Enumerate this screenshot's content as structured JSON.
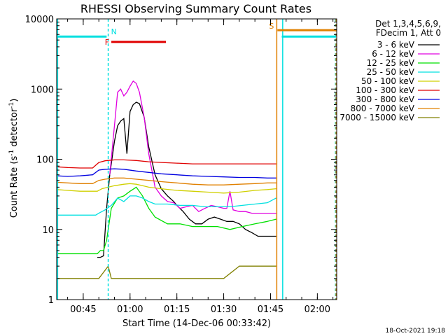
{
  "chart_data": {
    "type": "line",
    "title": "RHESSI Observing Summary Count Rates",
    "xlabel": "Start Time (14-Dec-06 00:33:42)",
    "ylabel_main": "Count Rate (s",
    "ylabel_sup1": "-1",
    "ylabel_mid": " detector",
    "ylabel_sup2": "-1",
    "ylabel_end": ")",
    "x_unit": "minutes since 00:00 UT",
    "xlim": [
      36.5,
      126.2
    ],
    "ylim": [
      1,
      10000
    ],
    "yscale": "log",
    "x_ticks": [
      {
        "value": 45,
        "label": "00:45"
      },
      {
        "value": 60,
        "label": "01:00"
      },
      {
        "value": 75,
        "label": "01:15"
      },
      {
        "value": 90,
        "label": "01:30"
      },
      {
        "value": 105,
        "label": "01:45"
      },
      {
        "value": 120,
        "label": "02:00"
      }
    ],
    "y_ticks": [
      {
        "value": 1,
        "label": "1"
      },
      {
        "value": 10,
        "label": "10"
      },
      {
        "value": 100,
        "label": "100"
      },
      {
        "value": 1000,
        "label": "1000"
      },
      {
        "value": 10000,
        "label": "10000"
      }
    ],
    "legend_header": [
      "Det 1,3,4,5,6,9,",
      "FDecim 1, Att 0"
    ],
    "legend_position": "right",
    "series": [
      {
        "name": "3 - 6 keV",
        "color": "#000000",
        "x": [
          49.5,
          50.5,
          51.5,
          52.5,
          53.5,
          55,
          56,
          57,
          58,
          59,
          60,
          61,
          62,
          63,
          64.5,
          66,
          68,
          70,
          72,
          74,
          75,
          77,
          79,
          81,
          83,
          85,
          87,
          89,
          91,
          93,
          95,
          97,
          99,
          101,
          103,
          105,
          106.8
        ],
        "y": [
          4,
          4,
          4.2,
          20,
          60,
          180,
          300,
          350,
          380,
          120,
          480,
          600,
          650,
          620,
          400,
          150,
          60,
          38,
          30,
          25,
          22,
          18,
          14,
          12,
          12,
          14,
          15,
          14,
          13,
          13,
          12,
          10,
          9,
          8,
          8,
          8,
          8
        ]
      },
      {
        "name": "6 - 12 keV",
        "color": "#e000e0",
        "x": [
          53.5,
          55,
          56,
          57,
          58,
          59,
          60,
          61,
          62,
          63,
          64.5,
          66,
          68,
          70,
          72,
          74,
          76,
          78,
          80,
          82,
          84,
          86,
          88,
          90,
          91,
          92,
          93,
          95,
          97,
          99,
          101,
          103,
          105,
          106.8
        ],
        "y": [
          60,
          300,
          900,
          1000,
          800,
          900,
          1100,
          1300,
          1200,
          900,
          400,
          120,
          40,
          30,
          25,
          24,
          20,
          21,
          22,
          18,
          20,
          22,
          21,
          20,
          20,
          35,
          19,
          18,
          18,
          17,
          17,
          17,
          17,
          17
        ]
      },
      {
        "name": "12 - 25 keV",
        "color": "#00e000",
        "x": [
          36.5,
          40,
          44,
          47,
          49.5,
          50.5,
          51.5,
          52.5,
          54,
          56,
          58,
          60,
          62,
          64,
          66,
          68,
          72,
          76,
          80,
          84,
          88,
          92,
          96,
          100,
          104,
          106.8
        ],
        "y": [
          4.5,
          4.5,
          4.5,
          4.5,
          4.5,
          5,
          5,
          7,
          20,
          28,
          30,
          35,
          40,
          30,
          20,
          15,
          12,
          12,
          11,
          11,
          11,
          10,
          11,
          12,
          13,
          14
        ]
      },
      {
        "name": "25 - 50 keV",
        "color": "#00e0e0",
        "x": [
          36.5,
          40,
          44,
          47,
          49,
          50,
          51,
          52,
          54,
          56,
          58,
          60,
          62,
          64,
          66,
          68,
          72,
          76,
          80,
          84,
          88,
          92,
          96,
          100,
          104,
          106.8
        ],
        "y": [
          16,
          16,
          16,
          16,
          16,
          17,
          18,
          19,
          22,
          28,
          25,
          30,
          30,
          28,
          25,
          23,
          23,
          22,
          22,
          21,
          21,
          21,
          22,
          23,
          24,
          28
        ]
      },
      {
        "name": "50 - 100 keV",
        "color": "#d0d000",
        "x": [
          36.5,
          40,
          44,
          47,
          49.5,
          51,
          53,
          55,
          58,
          60,
          62,
          64,
          66,
          70,
          75,
          80,
          85,
          90,
          95,
          100,
          104,
          106.8
        ],
        "y": [
          37,
          36,
          35,
          35,
          35,
          38,
          40,
          42,
          44,
          45,
          44,
          42,
          40,
          38,
          36,
          35,
          34,
          33,
          34,
          36,
          37,
          38
        ]
      },
      {
        "name": "100 - 300 keV",
        "color": "#e00000",
        "x": [
          36.5,
          40,
          44,
          48,
          50,
          52,
          55,
          58,
          62,
          66,
          70,
          75,
          80,
          85,
          90,
          95,
          100,
          104,
          106.8
        ],
        "y": [
          78,
          76,
          75,
          75,
          90,
          95,
          98,
          98,
          96,
          92,
          90,
          88,
          86,
          86,
          86,
          86,
          86,
          86,
          86
        ]
      },
      {
        "name": "300 - 800 keV",
        "color": "#0000e0",
        "x": [
          36.5,
          40,
          44,
          48,
          50,
          52,
          55,
          58,
          62,
          66,
          70,
          75,
          80,
          85,
          90,
          95,
          100,
          104,
          106.8
        ],
        "y": [
          58,
          57,
          58,
          60,
          70,
          72,
          73,
          72,
          68,
          65,
          62,
          60,
          58,
          57,
          56,
          55,
          55,
          54,
          54
        ]
      },
      {
        "name": "800 - 7000 keV",
        "color": "#e08000",
        "x": [
          36.5,
          40,
          44,
          48,
          50,
          52,
          55,
          58,
          62,
          66,
          70,
          75,
          80,
          85,
          90,
          95,
          100,
          104,
          106.8
        ],
        "y": [
          47,
          46,
          45,
          45,
          50,
          52,
          54,
          54,
          52,
          50,
          48,
          46,
          44,
          43,
          43,
          44,
          45,
          46,
          46
        ]
      },
      {
        "name": "7000 - 15000 keV",
        "color": "#808000",
        "x": [
          36.5,
          40,
          44,
          48,
          50,
          53,
          54,
          56,
          60,
          64,
          68,
          72,
          76,
          80,
          84,
          88,
          90,
          95,
          100,
          104,
          106.8
        ],
        "y": [
          2,
          2,
          2,
          2,
          2,
          3,
          2,
          2,
          2,
          2,
          2,
          2,
          2,
          2,
          2,
          2,
          2,
          3,
          3,
          3,
          3
        ]
      }
    ],
    "flags": [
      {
        "label": "N",
        "color": "#00e0e0",
        "position": "above",
        "segments": [
          [
            36.5,
            52.5
          ],
          [
            108.6,
            126.0
          ]
        ],
        "y": 5600
      },
      {
        "label": "S",
        "color": "#e08000",
        "position": "above",
        "segments": [
          [
            107.2,
            126.0
          ]
        ],
        "y": 6900
      },
      {
        "label": "F",
        "color": "#e00000",
        "position": "left",
        "segments": [
          [
            54.0,
            71.5
          ]
        ],
        "y": 4700
      }
    ],
    "vlines": [
      {
        "x": 36.8,
        "color": "#00e0e0",
        "style": "solid"
      },
      {
        "x": 53.0,
        "color": "#00e0e0",
        "style": "dashed"
      },
      {
        "x": 107.0,
        "color": "#e08000",
        "style": "solid"
      },
      {
        "x": 108.9,
        "color": "#00e0e0",
        "style": "solid"
      },
      {
        "x": 125.8,
        "color": "#00e0e0",
        "style": "dashed"
      },
      {
        "x": 126.0,
        "color": "#e08000",
        "style": "dashed"
      }
    ]
  },
  "footer": {
    "timestamp": "18-Oct-2021 19:18"
  }
}
